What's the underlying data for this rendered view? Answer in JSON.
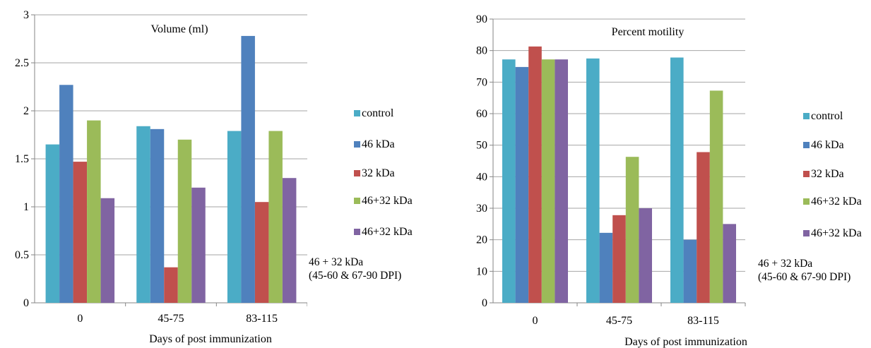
{
  "legend_items": [
    {
      "label": "control",
      "color": "#4bacc6"
    },
    {
      "label": "46 kDa",
      "color": "#4f81bd"
    },
    {
      "label": "32 kDa",
      "color": "#c0504d"
    },
    {
      "label": "46+32 kDa",
      "color": "#9bbb59"
    },
    {
      "label": "46+32 kDa",
      "color": "#8064a2"
    }
  ],
  "legend_note": [
    "46 + 32 kDa",
    "(45-60 & 67-90 DPI)"
  ],
  "chart_data": [
    {
      "type": "bar",
      "title": "Volume (ml)",
      "xlabel": "Days of post immunization",
      "ylabel": "",
      "ylim": [
        0,
        3
      ],
      "yticks": [
        0,
        0.5,
        1,
        1.5,
        2,
        2.5,
        3
      ],
      "ytick_labels": [
        "0",
        "0.5",
        "1",
        "1.5",
        "2",
        "2.5",
        "3"
      ],
      "grid": true,
      "legend_position": "right",
      "categories": [
        "0",
        "45-75",
        "83-115"
      ],
      "series": [
        {
          "name": "control",
          "values": [
            1.65,
            1.84,
            1.79
          ]
        },
        {
          "name": "46 kDa",
          "values": [
            2.27,
            1.81,
            2.78
          ]
        },
        {
          "name": "32 kDa",
          "values": [
            1.47,
            0.37,
            1.05
          ]
        },
        {
          "name": "46+32 kDa",
          "values": [
            1.9,
            1.7,
            1.79
          ]
        },
        {
          "name": "46+32 kDa",
          "values": [
            1.09,
            1.2,
            1.3
          ]
        }
      ]
    },
    {
      "type": "bar",
      "title": "Percent motility",
      "xlabel": "Days of post immunization",
      "ylabel": "",
      "ylim": [
        0,
        90
      ],
      "yticks": [
        0,
        10,
        20,
        30,
        40,
        50,
        60,
        70,
        80,
        90
      ],
      "ytick_labels": [
        "0",
        "10",
        "20",
        "30",
        "40",
        "50",
        "60",
        "70",
        "80",
        "90"
      ],
      "grid": true,
      "legend_position": "right",
      "categories": [
        "0",
        "45-75",
        "83-115"
      ],
      "series": [
        {
          "name": "control",
          "values": [
            77.2,
            77.5,
            77.8
          ]
        },
        {
          "name": "46 kDa",
          "values": [
            74.8,
            22.2,
            20.0
          ]
        },
        {
          "name": "32 kDa",
          "values": [
            81.3,
            27.8,
            47.8
          ]
        },
        {
          "name": "46+32 kDa",
          "values": [
            77.2,
            46.3,
            67.3
          ]
        },
        {
          "name": "46+32 kDa",
          "values": [
            77.2,
            30.0,
            25.0
          ]
        }
      ]
    }
  ]
}
